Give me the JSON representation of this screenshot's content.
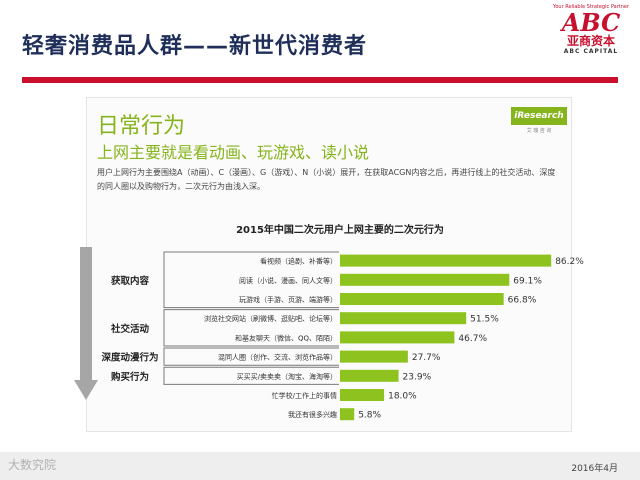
{
  "slide": {
    "title": "轻奢消费品人群——新世代消费者",
    "logo": {
      "tagline": "Your Reliable Strategic Partner",
      "abc": "ABC",
      "cn": "亚商资本",
      "en": "ABC CAPITAL"
    },
    "section_title": "日常行为",
    "section_subtitle": "上网主要就是看动画、玩游戏、读小说",
    "description": "用户上网行为主要围绕A（动画）、C（漫画）、G（游戏）、N（小说）展开，在获取ACGN内容之后，再进行线上的社交活动、深度的同人圈以及购物行为，二次元行为由浅入深。",
    "source_badge": "iResearch",
    "source_badge_sub": "艾 瑞 咨 询",
    "watermark": "大数究院",
    "date": "2016年4月"
  },
  "colors": {
    "accent_red": "#c8102e",
    "title_navy": "#1f2f5a",
    "bar_green": "#8dc21f",
    "text_green": "#86b41c",
    "arrow_gray": "#a6a6a6"
  },
  "chart_data": {
    "type": "bar",
    "orientation": "horizontal",
    "title": "2015年中国二次元用户上网主要的二次元行为",
    "categories": [
      "看视频（追剧、补番等）",
      "阅读（小说、漫画、同人文等）",
      "玩游戏（手游、页游、端游等）",
      "浏览社交网站（刷微博、逛贴吧、论坛等）",
      "和基友聊天（微信、QQ、陌陌）",
      "混同人圈（创作、交流、浏览作品等）",
      "买买买/卖卖卖（淘宝、海淘等）",
      "忙学校/工作上的事情",
      "我还有很多兴趣"
    ],
    "values": [
      86.2,
      69.1,
      66.8,
      51.5,
      46.7,
      27.7,
      23.9,
      18.0,
      5.8
    ],
    "value_labels": [
      "86.2%",
      "69.1%",
      "66.8%",
      "51.5%",
      "46.7%",
      "27.7%",
      "23.9%",
      "18.0%",
      "5.8%"
    ],
    "groups": [
      {
        "label": "获取内容",
        "rows": [
          0,
          1,
          2
        ]
      },
      {
        "label": "社交活动",
        "rows": [
          3,
          4
        ]
      },
      {
        "label": "深度动漫行为",
        "rows": [
          5
        ]
      },
      {
        "label": "购买行为",
        "rows": [
          6
        ]
      }
    ],
    "xlim": [
      0,
      100
    ],
    "grid": false,
    "legend": "none"
  }
}
